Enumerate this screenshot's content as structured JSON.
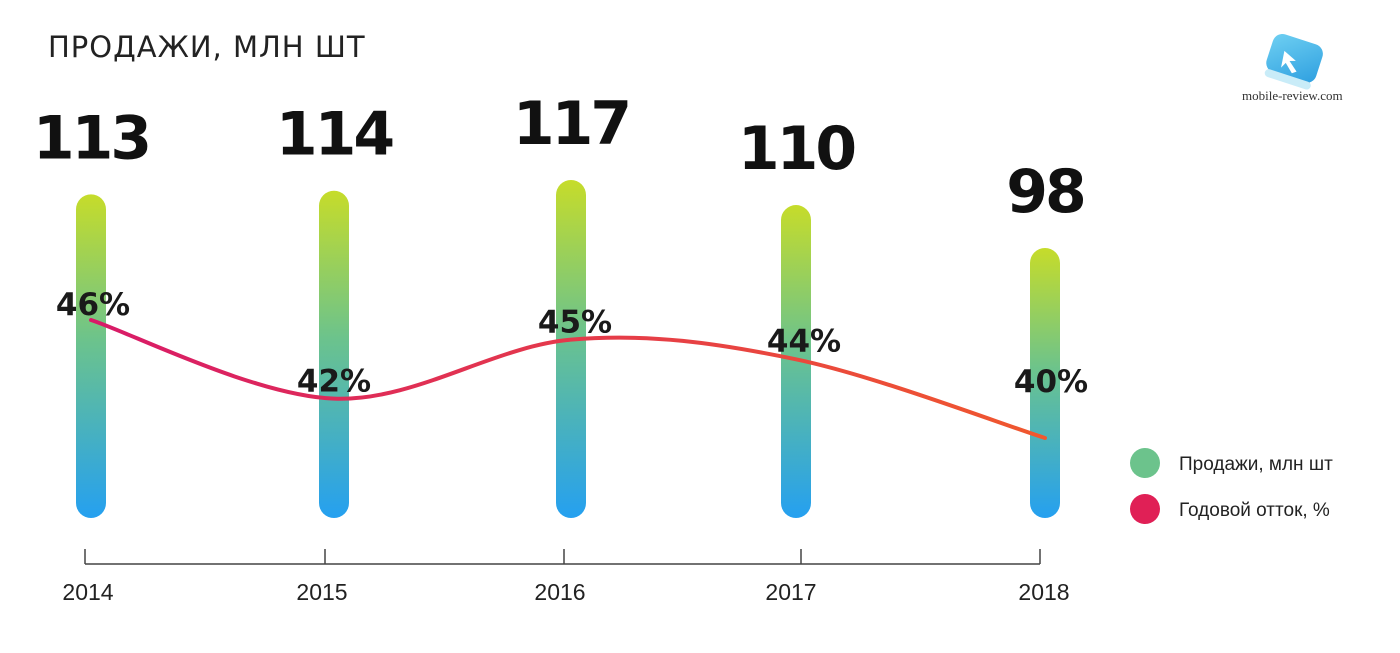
{
  "header": {
    "title": "ПРОДАЖИ, МЛН ШТ"
  },
  "logo": {
    "text": "mobile-review.com"
  },
  "colors": {
    "bar_top": "#c6dc2a",
    "bar_mid": "#6cc38c",
    "bar_bottom": "#25a0f0",
    "line_start": "#d81a68",
    "line_end": "#f0582e",
    "legend_sales": "#6cc38c",
    "legend_churn": "#e02056"
  },
  "chart_data": {
    "type": "bar",
    "categories": [
      "2014",
      "2015",
      "2016",
      "2017",
      "2018"
    ],
    "series": [
      {
        "name": "Продажи, млн шт",
        "type": "bar",
        "values": [
          113,
          114,
          117,
          110,
          98
        ],
        "labels": [
          "113",
          "114",
          "117",
          "110",
          "98"
        ]
      },
      {
        "name": "Годовой отток, %",
        "type": "line",
        "values": [
          46,
          42,
          45,
          44,
          40
        ],
        "labels": [
          "46%",
          "42%",
          "45%",
          "44%",
          "40%"
        ]
      }
    ],
    "legend": {
      "position": "right",
      "items": [
        "Продажи, млн шт",
        "Годовой отток, %"
      ]
    },
    "title": "ПРОДАЖИ, МЛН ШТ",
    "xlabel": "",
    "ylabel": ""
  }
}
